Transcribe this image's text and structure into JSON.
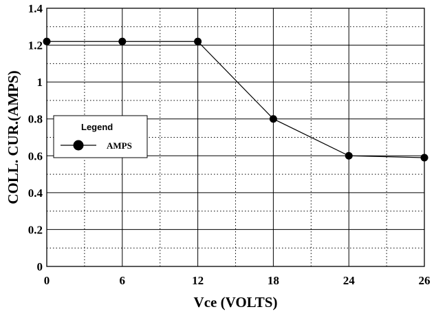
{
  "chart_data": {
    "type": "line",
    "xlabel": "Vce (VOLTS)",
    "ylabel": "COLL. CUR.(AMPS)",
    "x_ticks": [
      "0",
      "6",
      "12",
      "18",
      "24",
      "26"
    ],
    "y_ticks": [
      "0",
      "0.2",
      "0.4",
      "0.6",
      "0.8",
      "1",
      "1.2",
      "1.4"
    ],
    "ylim": [
      0,
      1.4
    ],
    "grid": true,
    "legend": {
      "title": "Legend",
      "position": "left"
    },
    "series": [
      {
        "name": "AMPS",
        "color": "#000000",
        "marker": "circle",
        "x": [
          "0",
          "6",
          "12",
          "18",
          "24",
          "26"
        ],
        "y": [
          1.22,
          1.22,
          1.22,
          0.8,
          0.6,
          0.59
        ]
      }
    ]
  }
}
